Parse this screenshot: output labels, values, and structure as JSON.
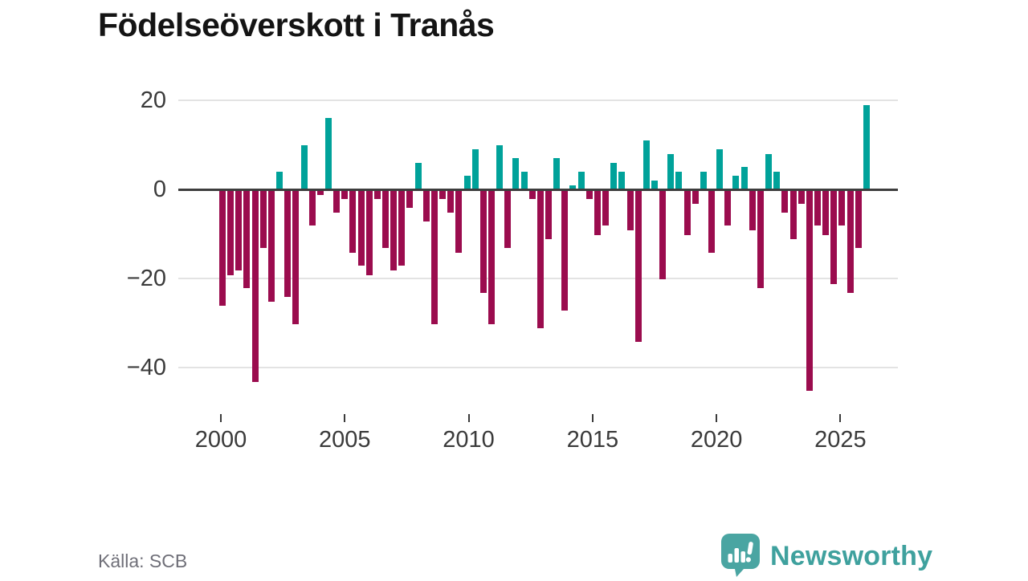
{
  "title": "Födelseöverskott i Tranås",
  "footer": {
    "source": "Källa: SCB",
    "brand": "Newsworthy"
  },
  "colors": {
    "positive": "#00a29a",
    "negative": "#9b0c4e",
    "grid": "#e3e3e3",
    "zero_line": "#3d3d3d",
    "axis_text": "#3a3a3a",
    "title_text": "#141414",
    "source_text": "#6f6f78",
    "brand": "#4aa5a2"
  },
  "chart_data": {
    "type": "bar",
    "title": "Födelseöverskott i Tranås",
    "xlabel": "",
    "ylabel": "",
    "x_axis": {
      "tick_labels": [
        "2000",
        "2005",
        "2010",
        "2015",
        "2020",
        "2025"
      ],
      "first_tick_bar": 0,
      "last_tick_bar": 76
    },
    "y_axis": {
      "tick_labels": [
        "20",
        "0",
        "−20",
        "−40"
      ],
      "tick_values": [
        20,
        0,
        -20,
        -40
      ],
      "ylim": [
        -48,
        22
      ],
      "grid": true,
      "zero_line": true
    },
    "legend": false,
    "positive_color": "#00a29a",
    "negative_color": "#9b0c4e",
    "values": [
      -26,
      -19,
      -18,
      -22,
      -43,
      -13,
      -25,
      4,
      -24,
      -30,
      10,
      -8,
      -1,
      16,
      -5,
      -2,
      -14,
      -17,
      -19,
      -2,
      -13,
      -18,
      -17,
      -4,
      6,
      -7,
      -30,
      -2,
      -5,
      -14,
      3,
      9,
      -23,
      -30,
      10,
      -13,
      7,
      4,
      -2,
      -31,
      -11,
      7,
      -27,
      1,
      4,
      -2,
      -10,
      -8,
      6,
      4,
      -9,
      -34,
      11,
      2,
      -20,
      8,
      4,
      -10,
      -3,
      4,
      -14,
      9,
      -8,
      3,
      5,
      -9,
      -22,
      8,
      4,
      -5,
      -11,
      -3,
      -45,
      -8,
      -10,
      -21,
      -8,
      -23,
      -13,
      19
    ]
  }
}
